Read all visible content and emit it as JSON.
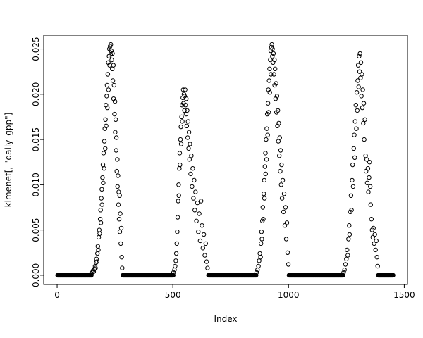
{
  "figure": {
    "background": "#ffffff",
    "foreground": "#000000"
  },
  "chart_data": {
    "type": "scatter",
    "title": "",
    "xlabel": "Index",
    "ylabel": "kimenet[, \"daily_gpp\"]",
    "marker": "open-circle",
    "color": "#000000",
    "background": "#ffffff",
    "grid": false,
    "legend": "none",
    "xlim": [
      -58,
      1514
    ],
    "ylim": [
      -0.00102,
      0.02652
    ],
    "x_ticks": [
      0,
      500,
      1000,
      1500
    ],
    "x_tick_labels": [
      "0",
      "500",
      "1000",
      "1500"
    ],
    "y_ticks": [
      0.0,
      0.005,
      0.01,
      0.015,
      0.02,
      0.025
    ],
    "y_tick_labels": [
      "0.000",
      "0.005",
      "0.010",
      "0.015",
      "0.020",
      "0.025"
    ],
    "zero_runs": [
      [
        2,
        148,
        2
      ],
      [
        284,
        502,
        2
      ],
      [
        654,
        860,
        2
      ],
      [
        1002,
        1236,
        2
      ],
      [
        1388,
        1452,
        2
      ]
    ],
    "points": [
      [
        148,
        0.0002
      ],
      [
        152,
        0.0003
      ],
      [
        155,
        0.0005
      ],
      [
        158,
        0.0004
      ],
      [
        161,
        0.0007
      ],
      [
        164,
        0.001
      ],
      [
        166,
        0.0008
      ],
      [
        168,
        0.0014
      ],
      [
        170,
        0.0018
      ],
      [
        172,
        0.0015
      ],
      [
        174,
        0.0024
      ],
      [
        176,
        0.0032
      ],
      [
        178,
        0.0028
      ],
      [
        180,
        0.0042
      ],
      [
        182,
        0.005
      ],
      [
        184,
        0.0046
      ],
      [
        186,
        0.0062
      ],
      [
        188,
        0.0072
      ],
      [
        189,
        0.0058
      ],
      [
        191,
        0.0085
      ],
      [
        193,
        0.0095
      ],
      [
        194,
        0.0078
      ],
      [
        196,
        0.0108
      ],
      [
        198,
        0.0122
      ],
      [
        199,
        0.0102
      ],
      [
        201,
        0.0135
      ],
      [
        203,
        0.0118
      ],
      [
        204,
        0.0148
      ],
      [
        206,
        0.0162
      ],
      [
        208,
        0.014
      ],
      [
        209,
        0.0172
      ],
      [
        211,
        0.0188
      ],
      [
        212,
        0.0165
      ],
      [
        214,
        0.0198
      ],
      [
        216,
        0.021
      ],
      [
        217,
        0.0185
      ],
      [
        219,
        0.0222
      ],
      [
        221,
        0.0235
      ],
      [
        222,
        0.0205
      ],
      [
        224,
        0.0242
      ],
      [
        226,
        0.025
      ],
      [
        227,
        0.0232
      ],
      [
        229,
        0.0253
      ],
      [
        231,
        0.0244
      ],
      [
        232,
        0.0255
      ],
      [
        234,
        0.0248
      ],
      [
        236,
        0.0238
      ],
      [
        238,
        0.0228
      ],
      [
        239,
        0.0245
      ],
      [
        241,
        0.0215
      ],
      [
        243,
        0.0232
      ],
      [
        244,
        0.0195
      ],
      [
        246,
        0.021
      ],
      [
        248,
        0.0178
      ],
      [
        250,
        0.0192
      ],
      [
        251,
        0.0158
      ],
      [
        253,
        0.0172
      ],
      [
        255,
        0.0138
      ],
      [
        256,
        0.0152
      ],
      [
        258,
        0.0115
      ],
      [
        260,
        0.0128
      ],
      [
        261,
        0.0098
      ],
      [
        263,
        0.011
      ],
      [
        265,
        0.0078
      ],
      [
        266,
        0.0092
      ],
      [
        268,
        0.0062
      ],
      [
        270,
        0.0088
      ],
      [
        271,
        0.0048
      ],
      [
        273,
        0.0068
      ],
      [
        275,
        0.0035
      ],
      [
        277,
        0.0052
      ],
      [
        279,
        0.002
      ],
      [
        281,
        0.0008
      ],
      [
        503,
        0.0003
      ],
      [
        507,
        0.0006
      ],
      [
        510,
        0.001
      ],
      [
        513,
        0.0016
      ],
      [
        515,
        0.0024
      ],
      [
        517,
        0.0035
      ],
      [
        519,
        0.0048
      ],
      [
        521,
        0.0064
      ],
      [
        523,
        0.0082
      ],
      [
        525,
        0.01
      ],
      [
        526,
        0.0088
      ],
      [
        528,
        0.0118
      ],
      [
        530,
        0.0135
      ],
      [
        531,
        0.0122
      ],
      [
        533,
        0.015
      ],
      [
        535,
        0.0164
      ],
      [
        536,
        0.0145
      ],
      [
        538,
        0.0175
      ],
      [
        540,
        0.0188
      ],
      [
        541,
        0.017
      ],
      [
        543,
        0.0196
      ],
      [
        545,
        0.0205
      ],
      [
        546,
        0.019
      ],
      [
        548,
        0.02
      ],
      [
        550,
        0.0182
      ],
      [
        551,
        0.0198
      ],
      [
        553,
        0.0205
      ],
      [
        555,
        0.0188
      ],
      [
        557,
        0.0178
      ],
      [
        558,
        0.0195
      ],
      [
        560,
        0.0165
      ],
      [
        562,
        0.0182
      ],
      [
        564,
        0.0152
      ],
      [
        566,
        0.017
      ],
      [
        568,
        0.014
      ],
      [
        570,
        0.0158
      ],
      [
        572,
        0.0128
      ],
      [
        574,
        0.0145
      ],
      [
        577,
        0.0112
      ],
      [
        580,
        0.0132
      ],
      [
        583,
        0.0098
      ],
      [
        586,
        0.0118
      ],
      [
        589,
        0.0085
      ],
      [
        592,
        0.0105
      ],
      [
        595,
        0.0072
      ],
      [
        598,
        0.0092
      ],
      [
        602,
        0.006
      ],
      [
        606,
        0.008
      ],
      [
        610,
        0.0048
      ],
      [
        614,
        0.0068
      ],
      [
        618,
        0.0038
      ],
      [
        622,
        0.0082
      ],
      [
        626,
        0.0055
      ],
      [
        630,
        0.003
      ],
      [
        634,
        0.0045
      ],
      [
        638,
        0.0022
      ],
      [
        642,
        0.0035
      ],
      [
        646,
        0.0015
      ],
      [
        650,
        0.0008
      ],
      [
        862,
        0.0003
      ],
      [
        866,
        0.0006
      ],
      [
        870,
        0.001
      ],
      [
        873,
        0.0016
      ],
      [
        876,
        0.0024
      ],
      [
        879,
        0.002
      ],
      [
        881,
        0.0035
      ],
      [
        883,
        0.0048
      ],
      [
        885,
        0.004
      ],
      [
        887,
        0.006
      ],
      [
        889,
        0.0075
      ],
      [
        891,
        0.0062
      ],
      [
        893,
        0.009
      ],
      [
        895,
        0.0105
      ],
      [
        896,
        0.0085
      ],
      [
        898,
        0.012
      ],
      [
        900,
        0.0135
      ],
      [
        901,
        0.0112
      ],
      [
        903,
        0.015
      ],
      [
        905,
        0.0128
      ],
      [
        906,
        0.0162
      ],
      [
        908,
        0.0178
      ],
      [
        910,
        0.0155
      ],
      [
        911,
        0.019
      ],
      [
        913,
        0.0205
      ],
      [
        914,
        0.018
      ],
      [
        916,
        0.0215
      ],
      [
        918,
        0.0228
      ],
      [
        919,
        0.0202
      ],
      [
        921,
        0.0238
      ],
      [
        923,
        0.0248
      ],
      [
        924,
        0.0222
      ],
      [
        926,
        0.0252
      ],
      [
        928,
        0.0255
      ],
      [
        930,
        0.0242
      ],
      [
        931,
        0.025
      ],
      [
        933,
        0.0235
      ],
      [
        935,
        0.0245
      ],
      [
        937,
        0.0222
      ],
      [
        939,
        0.0238
      ],
      [
        940,
        0.021
      ],
      [
        942,
        0.0228
      ],
      [
        944,
        0.0195
      ],
      [
        946,
        0.0212
      ],
      [
        948,
        0.018
      ],
      [
        950,
        0.0198
      ],
      [
        952,
        0.0165
      ],
      [
        954,
        0.0182
      ],
      [
        956,
        0.0148
      ],
      [
        958,
        0.0168
      ],
      [
        960,
        0.0132
      ],
      [
        962,
        0.0152
      ],
      [
        964,
        0.0115
      ],
      [
        966,
        0.0138
      ],
      [
        968,
        0.01
      ],
      [
        970,
        0.0122
      ],
      [
        972,
        0.0085
      ],
      [
        975,
        0.0105
      ],
      [
        978,
        0.007
      ],
      [
        981,
        0.009
      ],
      [
        984,
        0.0055
      ],
      [
        987,
        0.0075
      ],
      [
        990,
        0.004
      ],
      [
        993,
        0.0058
      ],
      [
        996,
        0.0025
      ],
      [
        999,
        0.0012
      ],
      [
        1238,
        0.0003
      ],
      [
        1242,
        0.0006
      ],
      [
        1246,
        0.0012
      ],
      [
        1250,
        0.0018
      ],
      [
        1253,
        0.0028
      ],
      [
        1256,
        0.0022
      ],
      [
        1259,
        0.004
      ],
      [
        1262,
        0.0055
      ],
      [
        1264,
        0.0045
      ],
      [
        1267,
        0.007
      ],
      [
        1270,
        0.0088
      ],
      [
        1272,
        0.0072
      ],
      [
        1275,
        0.0105
      ],
      [
        1277,
        0.0122
      ],
      [
        1279,
        0.0098
      ],
      [
        1282,
        0.014
      ],
      [
        1284,
        0.0155
      ],
      [
        1286,
        0.013
      ],
      [
        1288,
        0.017
      ],
      [
        1291,
        0.0188
      ],
      [
        1293,
        0.0162
      ],
      [
        1295,
        0.0202
      ],
      [
        1297,
        0.0182
      ],
      [
        1299,
        0.0215
      ],
      [
        1301,
        0.0232
      ],
      [
        1303,
        0.0208
      ],
      [
        1305,
        0.0242
      ],
      [
        1307,
        0.0225
      ],
      [
        1309,
        0.0245
      ],
      [
        1311,
        0.0218
      ],
      [
        1313,
        0.0235
      ],
      [
        1315,
        0.0198
      ],
      [
        1317,
        0.0222
      ],
      [
        1319,
        0.0185
      ],
      [
        1321,
        0.0205
      ],
      [
        1323,
        0.0168
      ],
      [
        1325,
        0.019
      ],
      [
        1327,
        0.015
      ],
      [
        1330,
        0.0172
      ],
      [
        1333,
        0.0132
      ],
      [
        1335,
        0.0115
      ],
      [
        1338,
        0.0128
      ],
      [
        1340,
        0.0102
      ],
      [
        1343,
        0.0118
      ],
      [
        1345,
        0.0092
      ],
      [
        1348,
        0.0108
      ],
      [
        1350,
        0.0125
      ],
      [
        1353,
        0.0098
      ],
      [
        1355,
        0.0078
      ],
      [
        1358,
        0.0062
      ],
      [
        1361,
        0.005
      ],
      [
        1364,
        0.0042
      ],
      [
        1367,
        0.0052
      ],
      [
        1370,
        0.0035
      ],
      [
        1373,
        0.0045
      ],
      [
        1376,
        0.0028
      ],
      [
        1379,
        0.0038
      ],
      [
        1382,
        0.002
      ],
      [
        1385,
        0.001
      ]
    ]
  }
}
